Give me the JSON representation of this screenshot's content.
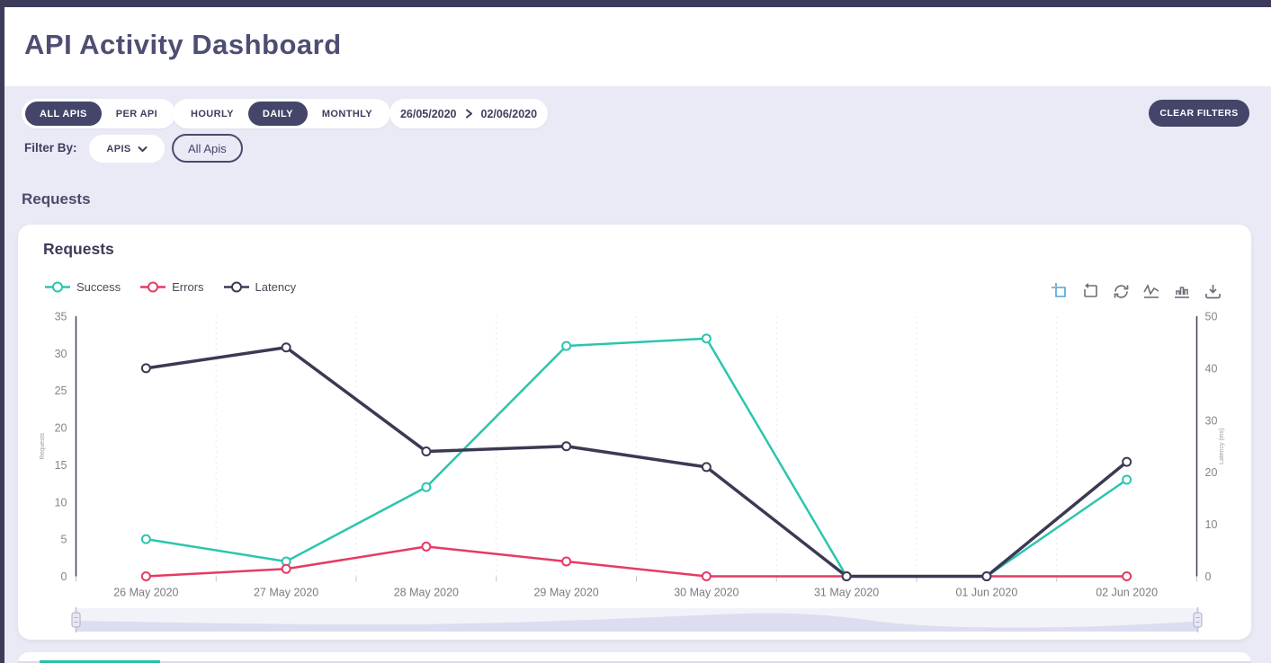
{
  "header": {
    "title": "API Activity Dashboard"
  },
  "filters": {
    "scope": [
      {
        "label": "ALL APIS",
        "active": true
      },
      {
        "label": "PER API",
        "active": false
      }
    ],
    "granularity": [
      {
        "label": "HOURLY",
        "active": false
      },
      {
        "label": "DAILY",
        "active": true
      },
      {
        "label": "MONTHLY",
        "active": false
      }
    ],
    "date_range": {
      "start": "26/05/2020",
      "end": "02/06/2020"
    },
    "clear_button_label": "CLEAR FILTERS",
    "filter_by_label": "Filter By:",
    "filter_dropdown_value": "APIS",
    "filter_chip_label": "All Apis"
  },
  "section": {
    "title": "Requests"
  },
  "card": {
    "title": "Requests"
  },
  "toolbar": {
    "icons": [
      "selection-zoom-icon",
      "zoom-reset-box-icon",
      "refresh-icon",
      "line-chart-icon",
      "bar-chart-icon",
      "download-icon"
    ],
    "active_icon": "selection-zoom-icon",
    "active_color": "#51a1dc",
    "icon_color": "#6e6e78"
  },
  "colors": {
    "success": "#2cc5ae",
    "errors": "#e63a63",
    "latency": "#3a3a54",
    "accent_dark": "#45456a",
    "background": "#e9eaf5",
    "tab_accent": "#26c0a9"
  },
  "chart_data": {
    "type": "line",
    "x": [
      "26 May 2020",
      "27 May 2020",
      "28 May 2020",
      "29 May 2020",
      "30 May 2020",
      "31 May 2020",
      "01 Jun 2020",
      "02 Jun 2020"
    ],
    "series": [
      {
        "name": "Success",
        "color": "#2cc5ae",
        "axis": "left",
        "stroke_width": 2.5,
        "values": [
          5,
          2,
          12,
          31,
          32,
          0,
          0,
          13
        ]
      },
      {
        "name": "Errors",
        "color": "#e63a63",
        "axis": "left",
        "stroke_width": 2.5,
        "values": [
          0,
          1,
          4,
          2,
          0,
          0,
          0,
          0
        ]
      },
      {
        "name": "Latency",
        "color": "#3a3a54",
        "axis": "right",
        "stroke_width": 3.5,
        "values": [
          40,
          44,
          24,
          25,
          21,
          0,
          0,
          22
        ]
      }
    ],
    "left_axis": {
      "min": 0,
      "max": 35,
      "ticks": [
        0,
        5,
        10,
        15,
        20,
        25,
        30,
        35
      ],
      "title": "Requests"
    },
    "right_axis": {
      "min": 0,
      "max": 50,
      "ticks": [
        0,
        10,
        20,
        30,
        40,
        50
      ],
      "title": "Latency (ms)"
    },
    "legend_position": "top-left",
    "grid": "vertical-dashed",
    "range_slider": true
  }
}
